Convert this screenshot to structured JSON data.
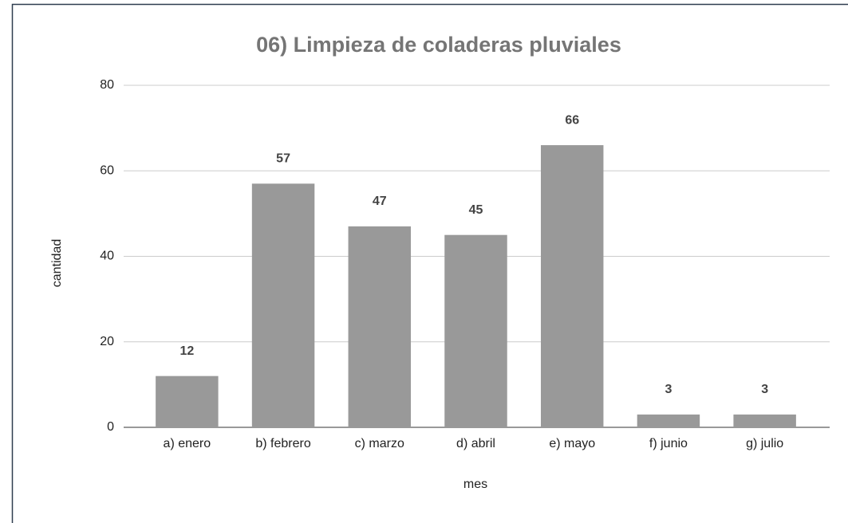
{
  "chart_data": {
    "type": "bar",
    "title": "06) Limpieza de coladeras pluviales",
    "x_label": "mes",
    "y_label": "cantidad",
    "categories": [
      "a) enero",
      "b) febrero",
      "c) marzo",
      "d) abril",
      "e) mayo",
      "f) junio",
      "g) julio"
    ],
    "values": [
      12,
      57,
      47,
      45,
      66,
      3,
      3
    ],
    "color": "#999999",
    "ylim": [
      0,
      80
    ],
    "yticks": [
      0,
      20,
      40,
      60,
      80
    ],
    "grid": true,
    "data_labels": true
  }
}
